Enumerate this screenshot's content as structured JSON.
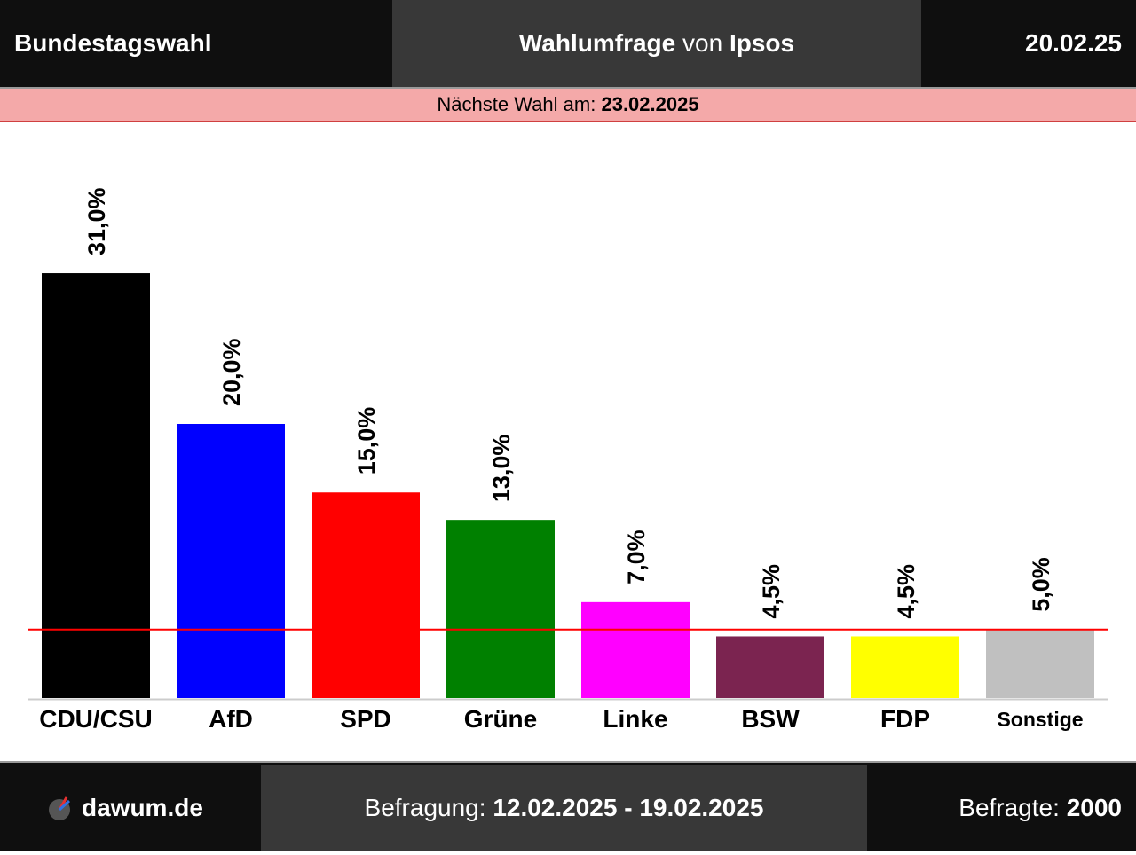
{
  "header": {
    "left_title": "Bundestagswahl",
    "center_title_bold1": "Wahlumfrage",
    "center_title_mid": "von",
    "center_title_bold2": "Ipsos",
    "date": "20.02.25"
  },
  "next_election": {
    "label": "Nächste Wahl am:",
    "date": "23.02.2025"
  },
  "footer": {
    "brand": "dawum.de",
    "survey_label": "Befragung:",
    "survey_period": "12.02.2025 - 19.02.2025",
    "respondents_label": "Befragte:",
    "respondents": "2000"
  },
  "colors": {
    "threshold_line": "#ff0000"
  },
  "chart_data": {
    "type": "bar",
    "categories": [
      "CDU/CSU",
      "AfD",
      "SPD",
      "Grüne",
      "Linke",
      "BSW",
      "FDP",
      "Sonstige"
    ],
    "values": [
      31.0,
      20.0,
      15.0,
      13.0,
      7.0,
      4.5,
      4.5,
      5.0
    ],
    "labels": [
      "31,0%",
      "20,0%",
      "15,0%",
      "13,0%",
      "7,0%",
      "4,5%",
      "4,5%",
      "5,0%"
    ],
    "colors": [
      "#000000",
      "#0000ff",
      "#ff0000",
      "#008000",
      "#ff00ff",
      "#7b2450",
      "#ffff00",
      "#c0c0c0"
    ],
    "threshold": 5.0,
    "ylim": [
      0,
      40
    ],
    "grid": false,
    "title": "",
    "xlabel": "",
    "ylabel": ""
  }
}
